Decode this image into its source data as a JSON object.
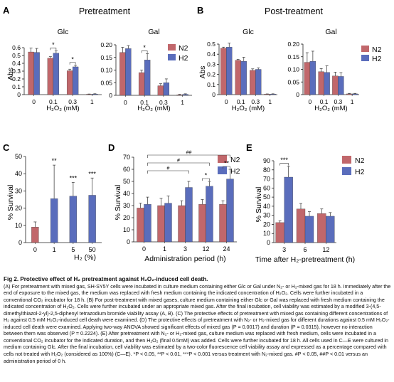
{
  "colors": {
    "n2": "#c1676b",
    "h2": "#5a6dbc",
    "axis": "#111111"
  },
  "legend": {
    "n2": "N2",
    "h2": "H2"
  },
  "panels": {
    "A": {
      "letter": "A",
      "title": "Pretreatment"
    },
    "B": {
      "letter": "B",
      "title": "Post-treatment"
    },
    "C": {
      "letter": "C"
    },
    "D": {
      "letter": "D"
    },
    "E": {
      "letter": "E"
    }
  },
  "chart_data": [
    {
      "id": "A-Glc",
      "type": "bar",
      "title": "Glc",
      "ylabel": "Abs",
      "xlabel": "H2O2 (mM)",
      "categories": [
        "0",
        "0.1",
        "0.3",
        "1"
      ],
      "ylim": [
        0,
        0.6
      ],
      "yticks": [
        "0",
        "0.1",
        "0.2",
        "0.3",
        "0.4",
        "0.5",
        "0.6"
      ],
      "series": [
        {
          "name": "N2",
          "values": [
            0.545,
            0.465,
            0.305,
            0.005
          ],
          "err": [
            0.05,
            0.02,
            0.02,
            0.003
          ]
        },
        {
          "name": "H2",
          "values": [
            0.54,
            0.53,
            0.355,
            0.008
          ],
          "err": [
            0.05,
            0.03,
            0.02,
            0.003
          ]
        }
      ],
      "annotations": [
        {
          "text": "*",
          "from": 1,
          "to": 1
        },
        {
          "text": "*",
          "from": 2,
          "to": 2
        }
      ]
    },
    {
      "id": "A-Gal",
      "type": "bar",
      "title": "Gal",
      "ylabel": "",
      "xlabel": "H2O2 (mM)",
      "categories": [
        "0",
        "0.1",
        "0.3",
        "1"
      ],
      "ylim": [
        0,
        0.2
      ],
      "yticks": [
        "0",
        "0.05",
        "0.10",
        "0.15",
        "0.20"
      ],
      "series": [
        {
          "name": "N2",
          "values": [
            0.17,
            0.09,
            0.038,
            0.002
          ],
          "err": [
            0.02,
            0.01,
            0.008,
            0.002
          ]
        },
        {
          "name": "H2",
          "values": [
            0.185,
            0.14,
            0.05,
            0.004
          ],
          "err": [
            0.012,
            0.025,
            0.015,
            0.002
          ]
        }
      ],
      "annotations": [
        {
          "text": "*",
          "from": 1,
          "to": 1
        }
      ]
    },
    {
      "id": "B-Glc",
      "type": "bar",
      "title": "Glc",
      "ylabel": "Abs",
      "xlabel": "H2O2 (mM)",
      "categories": [
        "0",
        "0.1",
        "0.3",
        "1"
      ],
      "ylim": [
        0,
        0.5
      ],
      "yticks": [
        "0",
        "0.1",
        "0.2",
        "0.3",
        "0.4",
        "0.5"
      ],
      "series": [
        {
          "name": "N2",
          "values": [
            0.46,
            0.34,
            0.24,
            0.005
          ],
          "err": [
            0.01,
            0.01,
            0.015,
            0.002
          ]
        },
        {
          "name": "H2",
          "values": [
            0.47,
            0.33,
            0.25,
            0.006
          ],
          "err": [
            0.04,
            0.04,
            0.015,
            0.002
          ]
        }
      ],
      "annotations": []
    },
    {
      "id": "B-Gal",
      "type": "bar",
      "title": "Gal",
      "ylabel": "",
      "xlabel": "H2O2 (mM)",
      "categories": [
        "0",
        "0.1",
        "0.3",
        "1"
      ],
      "ylim": [
        0,
        0.2
      ],
      "yticks": [
        "0",
        "0.05",
        "0.10",
        "0.15",
        "0.20"
      ],
      "series": [
        {
          "name": "N2",
          "values": [
            0.128,
            0.091,
            0.074,
            0.003
          ],
          "err": [
            0.038,
            0.012,
            0.015,
            0.002
          ]
        },
        {
          "name": "H2",
          "values": [
            0.132,
            0.088,
            0.072,
            0.003
          ],
          "err": [
            0.04,
            0.026,
            0.015,
            0.002
          ]
        }
      ],
      "annotations": []
    },
    {
      "id": "C",
      "type": "bar",
      "title": "",
      "ylabel": "% Survival",
      "xlabel": "H2 (%)",
      "categories": [
        "0",
        "1",
        "5",
        "50"
      ],
      "ylim": [
        0,
        50
      ],
      "yticks": [
        "0",
        "10",
        "20",
        "30",
        "40",
        "50"
      ],
      "series": [
        {
          "name": "",
          "values": [
            9,
            25.5,
            27,
            27.5
          ],
          "err": [
            3,
            19.5,
            8,
            10
          ]
        }
      ],
      "bar_colors": [
        "n2",
        "h2",
        "h2",
        "h2"
      ],
      "annotations": [
        {
          "text": "**",
          "at": 1
        },
        {
          "text": "***",
          "at": 2
        },
        {
          "text": "***",
          "at": 3
        }
      ]
    },
    {
      "id": "D",
      "type": "bar",
      "title": "",
      "ylabel": "% Survival",
      "xlabel": "Administration period (h)",
      "categories": [
        "0",
        "1",
        "3",
        "12",
        "24"
      ],
      "ylim": [
        0,
        70
      ],
      "yticks": [
        "0",
        "10",
        "20",
        "30",
        "40",
        "50",
        "60",
        "70"
      ],
      "series": [
        {
          "name": "N2",
          "values": [
            28,
            30,
            30,
            31,
            31
          ],
          "err": [
            4,
            6,
            4,
            4,
            3
          ]
        },
        {
          "name": "H2",
          "values": [
            31,
            32,
            45,
            46,
            52
          ],
          "err": [
            6,
            6,
            5,
            4,
            8
          ]
        }
      ],
      "annotations": [
        {
          "text": "**",
          "group": 4
        },
        {
          "text": "*",
          "group": 3
        }
      ],
      "brackets": [
        {
          "text": "##",
          "from": 0,
          "to": 4,
          "level": 0
        },
        {
          "text": "#",
          "from": 0,
          "to": 3,
          "level": 1
        },
        {
          "text": "#",
          "from": 0,
          "to": 2,
          "level": 2
        }
      ]
    },
    {
      "id": "E",
      "type": "bar",
      "title": "",
      "ylabel": "% Survival",
      "xlabel": "Time after H2-pretreatment (h)",
      "categories": [
        "3",
        "6",
        "12"
      ],
      "ylim": [
        0,
        90
      ],
      "yticks": [
        "0",
        "10",
        "20",
        "30",
        "40",
        "50",
        "60",
        "70",
        "80",
        "90"
      ],
      "series": [
        {
          "name": "N2",
          "values": [
            22,
            37,
            32
          ],
          "err": [
            2,
            6,
            5
          ]
        },
        {
          "name": "H2",
          "values": [
            72,
            29,
            29
          ],
          "err": [
            12,
            5,
            4
          ]
        }
      ],
      "annotations": [
        {
          "text": "***",
          "group": 0
        }
      ]
    }
  ],
  "caption": {
    "title": "Fig 2. Protective effect of H₂ pretreatment against H₂O₂-induced cell death.",
    "body": "(A) For pretreatment with mixed gas, SH-SY5Y cells were incubated in culture medium containing either Glc or Gal under N₂- or H₂-mixed gas for 18 h. Immediately after the end of exposure to the mixed gas, the medium was replaced with fresh medium containing the indicated concentration of H₂O₂. Cells were further incubated in a conventional CO₂ incubator for 18 h. (B) For post-treatment with mixed gases, culture medium containing either Glc or Gal was replaced with fresh medium containing the indicated concentration of H₂O₂. Cells were further incubated under an appropriate mixed gas. After the final incubation, cell viability was estimated by a modified 3-(4,5-dimethylthiazol-2-yl)-2,5-diphenyl tetrazodium bromide viability assay (A, B). (C) The protective effects of pretreatment with mixed gas containing different concentrations of H₂ against 0.5 mM H₂O₂-induced cell death were examined. (D) The protective effects of pretreatment with N₂- or H₂-mixed gas for different durations against 0.5 mM H₂O₂-induced cell death were examined. Applying two-way ANOVA showed significant effects of mixed gas (P = 0.0017) and duration (P = 0.0315), however no interaction between them was observed (P = 0.2224). (E) After pretreatment with N₂- or H₂-mixed gas, culture medium was replaced with fresh medium, cells were incubated in a conventional CO₂ incubator for the indicated duration, and then H₂O₂ (final 0.5mM) was added. Cells were further incubated for 18 h. All cells used in C—E were cultured in medium containing Glc. After the final incubation, cell viability was estimated by a two-color fluorescence cell viability assay and expressed as a percentage compared with cells not treated with H₂O₂ (considered as 100%) (C—E). *P < 0.05, **P < 0.01, ***P < 0.001 versus treatment with N₂-mixed gas. #P < 0.05, ##P < 0.01 versus an administration period of 0 h."
  }
}
